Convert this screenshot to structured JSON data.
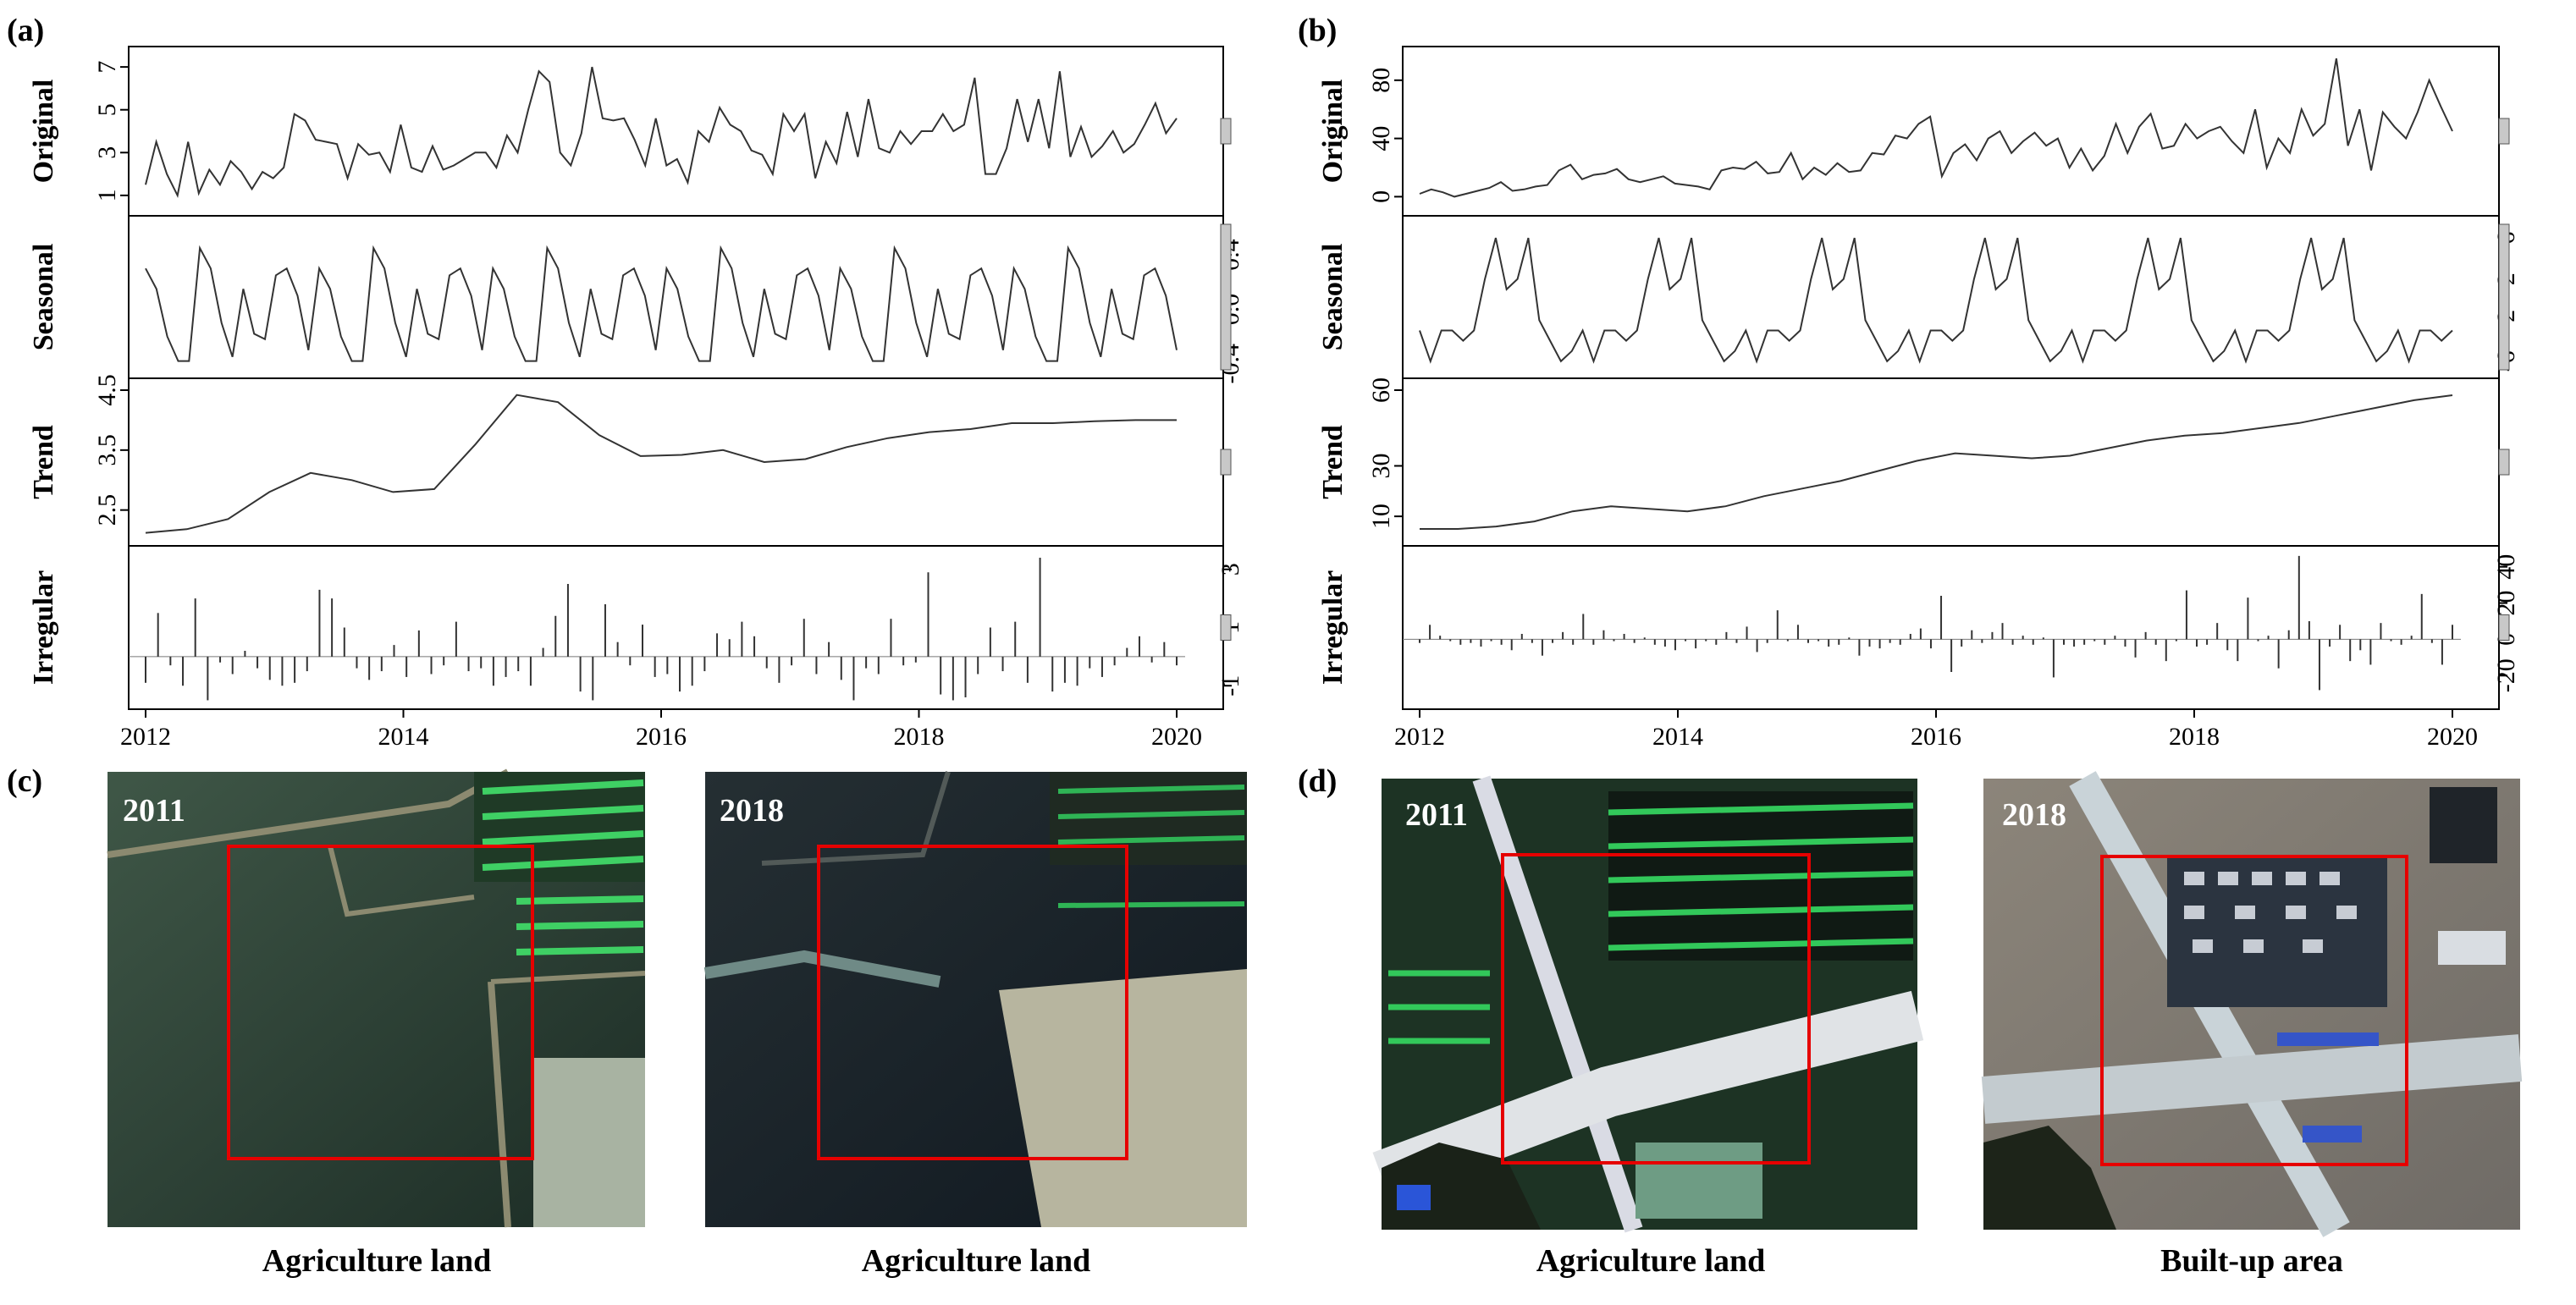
{
  "chart_data": [
    {
      "panel": "(a)",
      "type": "line",
      "x_ticks": [
        "2012",
        "2014",
        "2016",
        "2018",
        "2020"
      ],
      "start_year": 2012.25,
      "subplots": [
        {
          "ylabel": "Original",
          "type": "line",
          "yticks": [
            "1",
            "3",
            "5",
            "7"
          ],
          "ylim": [
            0.6,
            7.4
          ],
          "values": [
            1.5,
            3.5,
            2.0,
            1.0,
            3.5,
            1.1,
            2.2,
            1.5,
            2.6,
            2.1,
            1.3,
            2.1,
            1.8,
            2.3,
            4.8,
            4.5,
            3.6,
            3.5,
            3.4,
            1.8,
            3.4,
            2.9,
            3.0,
            2.1,
            4.3,
            2.3,
            2.1,
            3.3,
            2.2,
            2.4,
            2.7,
            3.0,
            3.0,
            2.3,
            3.8,
            3.0,
            5.0,
            6.8,
            6.3,
            3.0,
            2.4,
            3.9,
            7.0,
            4.6,
            4.5,
            4.6,
            3.6,
            2.4,
            4.6,
            2.4,
            2.7,
            1.6,
            4.0,
            3.5,
            5.1,
            4.3,
            4.0,
            3.1,
            2.9,
            2.0,
            4.8,
            4.0,
            4.8,
            1.8,
            3.5,
            2.5,
            4.9,
            2.8,
            5.5,
            3.2,
            3.0,
            4.0,
            3.4,
            4.0,
            4.0,
            4.8,
            4.0,
            4.3,
            6.5,
            2.0,
            2.0,
            3.2,
            5.5,
            3.5,
            5.5,
            3.2,
            6.8,
            2.8,
            4.2,
            2.8,
            3.3,
            4.0,
            3.0,
            3.4,
            4.3,
            5.3,
            3.9,
            4.6
          ]
        },
        {
          "ylabel": "Seasonal",
          "type": "line",
          "yticks": [
            "-0.4",
            "0.0",
            "0.4"
          ],
          "ylim": [
            -0.42,
            0.6
          ],
          "values": [
            0.3,
            0.15,
            -0.2,
            -0.38,
            -0.38,
            0.45,
            0.3,
            -0.1,
            -0.35,
            0.15,
            -0.18,
            -0.22,
            0.25,
            0.3,
            0.1,
            -0.3
          ]
        },
        {
          "ylabel": "Trend",
          "type": "line",
          "yticks": [
            "2.5",
            "3.5",
            "4.5"
          ],
          "ylim": [
            2.1,
            4.5
          ],
          "values": [
            2.12,
            2.18,
            2.35,
            2.8,
            3.12,
            3.0,
            2.8,
            2.85,
            3.6,
            4.42,
            4.3,
            3.75,
            3.4,
            3.42,
            3.5,
            3.3,
            3.35,
            3.55,
            3.7,
            3.8,
            3.85,
            3.95,
            3.95,
            3.98,
            4.0,
            4.0
          ]
        },
        {
          "ylabel": "Irregular",
          "type": "bar",
          "yticks": [
            "-1",
            "1",
            "3"
          ],
          "ylim": [
            -1.4,
            3.4
          ],
          "values": [
            -0.9,
            1.5,
            -0.3,
            -1.0,
            2.0,
            -1.5,
            -0.2,
            -0.6,
            0.2,
            -0.4,
            -0.8,
            -1.0,
            -0.9,
            -0.5,
            2.3,
            2.0,
            1.0,
            -0.4,
            -0.8,
            -0.5,
            0.4,
            -0.7,
            0.9,
            -0.6,
            -0.3,
            1.2,
            -0.5,
            -0.4,
            -1.0,
            -0.7,
            -0.5,
            -1.0,
            0.3,
            1.4,
            2.5,
            -1.2,
            -1.5,
            1.8,
            0.5,
            -0.3,
            1.1,
            -0.7,
            -0.6,
            -1.2,
            -1.0,
            -0.5,
            0.8,
            0.6,
            1.2,
            0.7,
            -0.4,
            -0.9,
            -0.3,
            1.3,
            -0.6,
            0.5,
            -0.8,
            -1.5,
            -0.4,
            -0.6,
            1.3,
            -0.3,
            -0.2,
            2.9,
            -1.3,
            -1.5,
            -1.4,
            -0.6,
            1.0,
            -0.5,
            1.2,
            -0.9,
            3.4,
            -1.2,
            -0.9,
            -1.0,
            -0.4,
            -0.7,
            -0.3,
            0.3,
            0.7,
            -0.2,
            0.5,
            -0.3
          ]
        }
      ]
    },
    {
      "panel": "(b)",
      "type": "line",
      "x_ticks": [
        "2012",
        "2014",
        "2016",
        "2018",
        "2020"
      ],
      "start_year": 2012.25,
      "subplots": [
        {
          "ylabel": "Original",
          "type": "line",
          "yticks": [
            "0",
            "40",
            "80"
          ],
          "ylim": [
            -5,
            95
          ],
          "values": [
            2,
            5,
            3,
            0,
            2,
            4,
            6,
            10,
            4,
            5,
            7,
            8,
            18,
            22,
            12,
            15,
            16,
            19,
            12,
            10,
            12,
            14,
            9,
            8,
            7,
            5,
            18,
            20,
            19,
            24,
            16,
            17,
            30,
            12,
            20,
            15,
            23,
            17,
            18,
            30,
            29,
            42,
            40,
            50,
            55,
            14,
            30,
            36,
            25,
            40,
            45,
            30,
            38,
            44,
            35,
            40,
            20,
            33,
            18,
            28,
            50,
            30,
            48,
            57,
            33,
            35,
            50,
            40,
            45,
            48,
            38,
            30,
            60,
            20,
            40,
            30,
            60,
            42,
            50,
            95,
            35,
            60,
            18,
            58,
            48,
            40,
            58,
            80,
            62,
            45
          ]
        },
        {
          "ylabel": "Seasonal",
          "type": "line",
          "yticks": [
            "-6",
            "-2",
            "2",
            "6"
          ],
          "ylim": [
            -6.5,
            7
          ],
          "values": [
            -3,
            -6,
            -3,
            -3,
            -4,
            -3,
            2,
            6,
            1,
            2,
            6,
            -2,
            -4,
            -6,
            -5
          ]
        },
        {
          "ylabel": "Trend",
          "type": "line",
          "yticks": [
            "10",
            "30",
            "60"
          ],
          "ylim": [
            3,
            60
          ],
          "values": [
            5,
            5,
            6,
            8,
            12,
            14,
            13,
            12,
            14,
            18,
            21,
            24,
            28,
            32,
            35,
            34,
            33,
            34,
            37,
            40,
            42,
            43,
            45,
            47,
            50,
            53,
            56,
            58
          ]
        },
        {
          "ylabel": "Irregular",
          "type": "bar",
          "yticks": [
            "-20",
            "0",
            "20",
            "40"
          ],
          "ylim": [
            -32,
            45
          ],
          "values": [
            -2,
            8,
            2,
            -1,
            -3,
            -2,
            -4,
            -1,
            -3,
            -6,
            3,
            -2,
            -9,
            -2,
            4,
            -3,
            14,
            -3,
            5,
            -1,
            3,
            -2,
            1,
            -3,
            -4,
            -6,
            -1,
            -5,
            -1,
            -3,
            4,
            -2,
            7,
            -7,
            -2,
            16,
            -1,
            8,
            -2,
            -1,
            -4,
            -3,
            1,
            -9,
            -4,
            -5,
            -2,
            -3,
            3,
            6,
            -5,
            24,
            -18,
            -4,
            5,
            -2,
            4,
            9,
            -3,
            2,
            -3,
            1,
            -21,
            -3,
            -4,
            -3,
            -1,
            -3,
            2,
            -4,
            -10,
            4,
            -3,
            -12,
            -1,
            27,
            -4,
            -3,
            9,
            -6,
            -12,
            23,
            -1,
            2,
            -16,
            5,
            46,
            10,
            -28,
            -4,
            8,
            -12,
            -6,
            -14,
            9,
            -1,
            -3,
            2,
            25,
            -2,
            -14,
            8
          ]
        }
      ]
    }
  ],
  "labels": {
    "panel_a": "(a)",
    "panel_b": "(b)",
    "panel_c": "(c)",
    "panel_d": "(d)",
    "c_year_left": "2011",
    "c_year_right": "2018",
    "d_year_left": "2011",
    "d_year_right": "2018",
    "c_caption_left": "Agriculture land",
    "c_caption_right": "Agriculture land",
    "d_caption_left": "Agriculture land",
    "d_caption_right": "Built-up area"
  },
  "colors": {
    "line": "#333333",
    "highlight_box": "#e60000",
    "scale_bar": "#c8c8c8"
  }
}
